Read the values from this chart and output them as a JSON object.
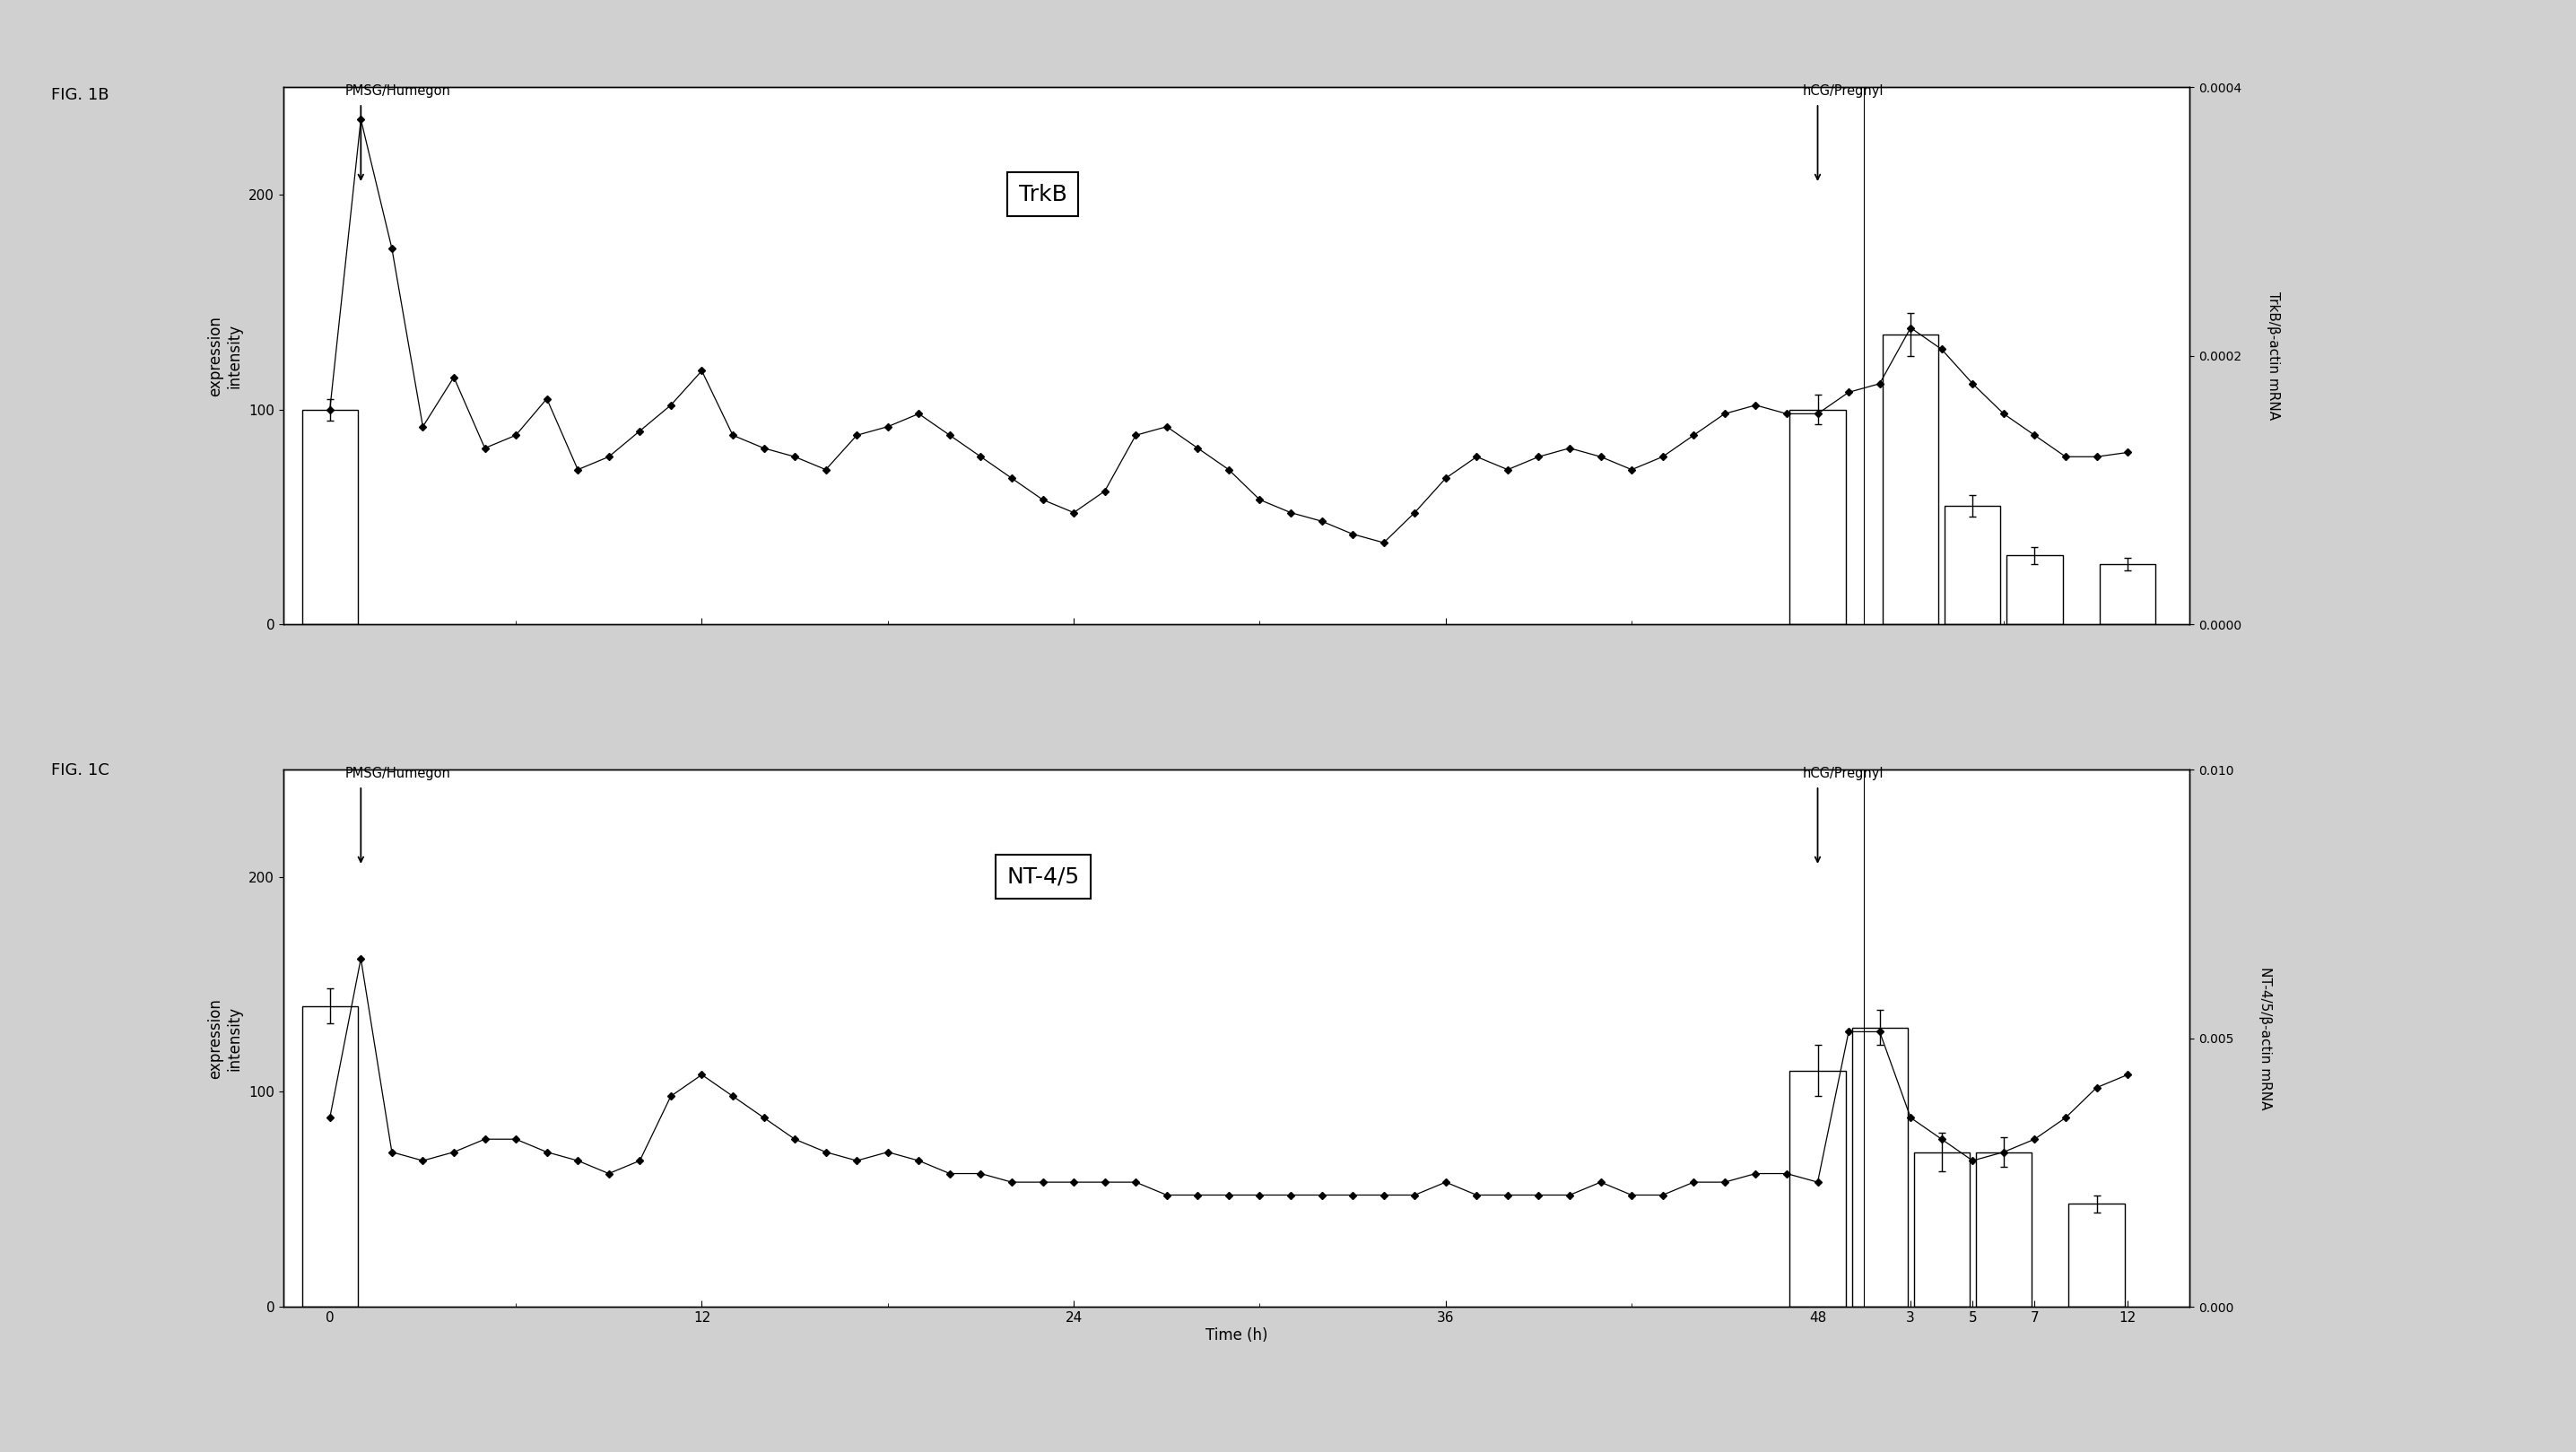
{
  "fig_width": 28.72,
  "fig_height": 16.19,
  "background_color": "#d0d0d0",
  "panel1": {
    "label": "FIG. 1B",
    "gene_label": "TrkB",
    "left_ylabel": "expression\nintensity",
    "right_ylabel": "TrkB/β-actin mRNA",
    "pmsg_label": "PMSG/Humegon",
    "hcg_label": "hCG/Pregnyl",
    "ylim_left": [
      0,
      250
    ],
    "ylim_right": [
      0,
      0.0004
    ],
    "yticks_left": [
      0,
      100,
      200
    ],
    "yticks_right": [
      0,
      0.0002,
      0.0004
    ],
    "line_x": [
      0,
      1,
      2,
      3,
      4,
      5,
      6,
      7,
      8,
      9,
      10,
      11,
      12,
      13,
      14,
      15,
      16,
      17,
      18,
      19,
      20,
      21,
      22,
      23,
      24,
      25,
      26,
      27,
      28,
      29,
      30,
      31,
      32,
      33,
      34,
      35,
      36,
      37,
      38,
      39,
      40,
      41,
      42,
      43,
      44,
      45,
      46,
      47,
      48,
      49,
      50,
      51,
      52,
      53,
      54,
      55,
      56,
      57,
      58
    ],
    "line_y": [
      100,
      235,
      175,
      92,
      115,
      82,
      88,
      105,
      72,
      78,
      90,
      102,
      118,
      88,
      82,
      78,
      72,
      88,
      92,
      98,
      88,
      78,
      68,
      58,
      52,
      62,
      88,
      92,
      82,
      72,
      58,
      52,
      48,
      42,
      38,
      52,
      68,
      78,
      72,
      78,
      82,
      78,
      72,
      78,
      88,
      98,
      102,
      98,
      98,
      108,
      112,
      138,
      128,
      112,
      98,
      88,
      78,
      78,
      80
    ],
    "bar_x_left": [
      0
    ],
    "bar_h_left": [
      100
    ],
    "bar_e_left": [
      5
    ],
    "bar_x_right": [
      48,
      51,
      53,
      55,
      58
    ],
    "bar_h_right": [
      100,
      135,
      55,
      32,
      28
    ],
    "bar_e_right": [
      7,
      10,
      5,
      4,
      3
    ],
    "bar_width": 1.8,
    "pmsg_x": 1,
    "hcg_x": 48
  },
  "panel2": {
    "label": "FIG. 1C",
    "gene_label": "NT-4/5",
    "left_ylabel": "expression\nintensity",
    "right_ylabel": "NT-4/5/β-actin mRNA",
    "pmsg_label": "PMSG/Humegon",
    "hcg_label": "hCG/Pregnyl",
    "ylim_left": [
      0,
      250
    ],
    "ylim_right": [
      0,
      0.01
    ],
    "yticks_left": [
      0,
      100,
      200
    ],
    "yticks_right": [
      0,
      0.005,
      0.01
    ],
    "line_x": [
      0,
      1,
      2,
      3,
      4,
      5,
      6,
      7,
      8,
      9,
      10,
      11,
      12,
      13,
      14,
      15,
      16,
      17,
      18,
      19,
      20,
      21,
      22,
      23,
      24,
      25,
      26,
      27,
      28,
      29,
      30,
      31,
      32,
      33,
      34,
      35,
      36,
      37,
      38,
      39,
      40,
      41,
      42,
      43,
      44,
      45,
      46,
      47,
      48,
      49,
      50,
      51,
      52,
      53,
      54,
      55,
      56,
      57,
      58
    ],
    "line_y": [
      88,
      162,
      72,
      68,
      72,
      78,
      78,
      72,
      68,
      62,
      68,
      98,
      108,
      98,
      88,
      78,
      72,
      68,
      72,
      68,
      62,
      62,
      58,
      58,
      58,
      58,
      58,
      52,
      52,
      52,
      52,
      52,
      52,
      52,
      52,
      52,
      58,
      52,
      52,
      52,
      52,
      58,
      52,
      52,
      58,
      58,
      62,
      62,
      58,
      128,
      128,
      88,
      78,
      68,
      72,
      78,
      88,
      102,
      108
    ],
    "bar_x_left": [
      0
    ],
    "bar_h_left": [
      140
    ],
    "bar_e_left": [
      8
    ],
    "bar_x_right": [
      48,
      50,
      52,
      54,
      57
    ],
    "bar_h_right": [
      110,
      130,
      72,
      72,
      48
    ],
    "bar_e_right": [
      12,
      8,
      9,
      7,
      4
    ],
    "bar_width": 1.8,
    "pmsg_x": 1,
    "hcg_x": 48
  },
  "xtick_major": [
    0,
    12,
    24,
    36,
    48,
    51,
    53,
    55,
    58
  ],
  "xtick_labels": [
    "0",
    "12",
    "24",
    "36",
    "48",
    "3",
    "5",
    "7",
    "12"
  ],
  "xlabel": "Time (h)",
  "xlim": [
    -1.5,
    60
  ]
}
